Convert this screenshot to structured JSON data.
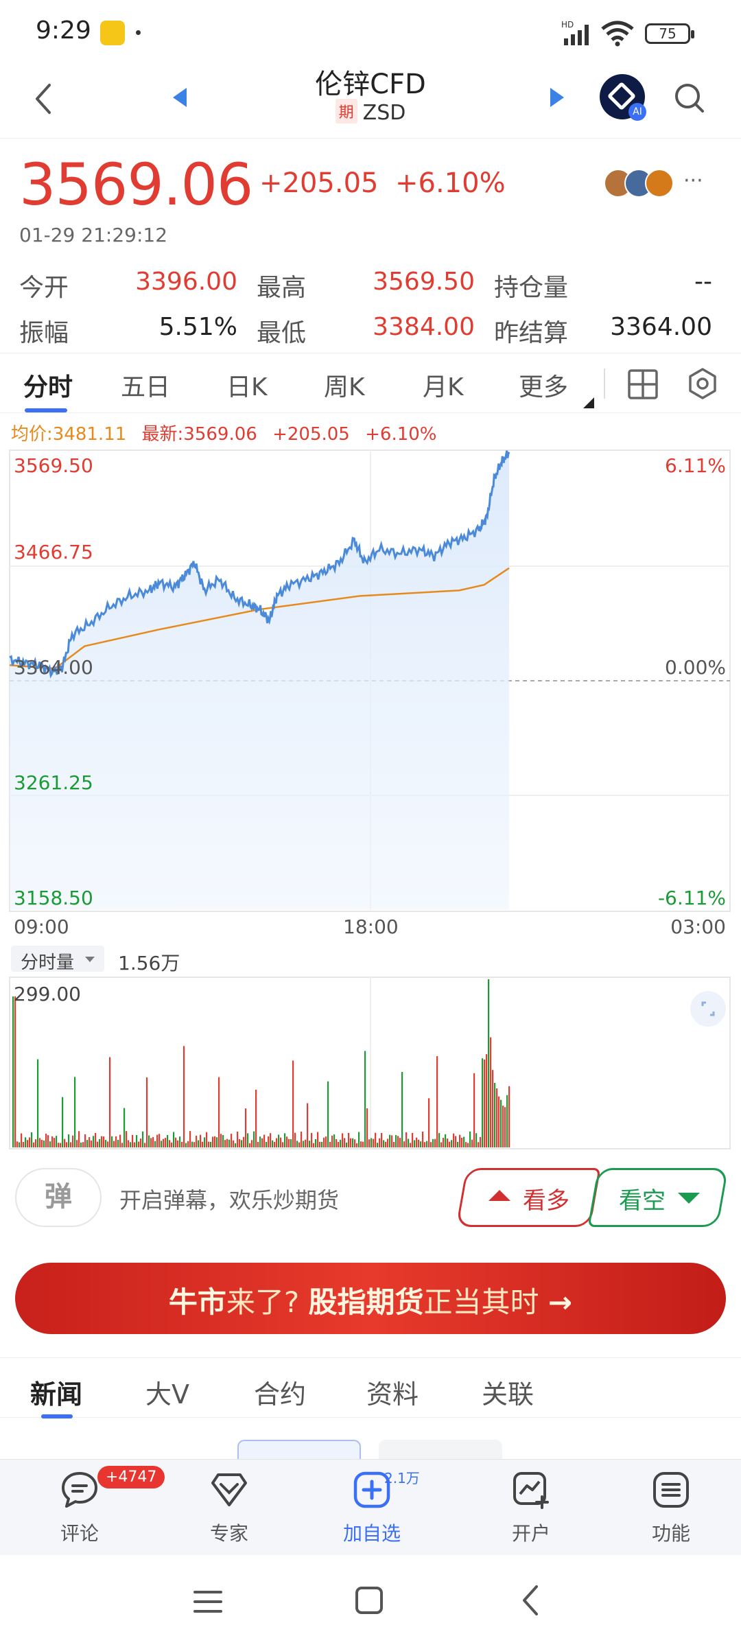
{
  "status_bar": {
    "time": "9:29",
    "battery": "75"
  },
  "header": {
    "title": "伦锌CFD",
    "tag": "期",
    "code": "ZSD",
    "ai_label": "AI"
  },
  "quote": {
    "price": "3569.06",
    "change": "+205.05",
    "change_pct": "+6.10%",
    "timestamp": "01-29 21:29:12",
    "more": "···"
  },
  "stats": [
    {
      "label": "今开",
      "value": "3396.00"
    },
    {
      "label": "最高",
      "value": "3569.50"
    },
    {
      "label": "持仓量",
      "value": "--"
    },
    {
      "label": "振幅",
      "value": "5.51%"
    },
    {
      "label": "最低",
      "value": "3384.00"
    },
    {
      "label": "昨结算",
      "value": "3364.00"
    }
  ],
  "tabs": [
    "分时",
    "五日",
    "日K",
    "周K",
    "月K",
    "更多"
  ],
  "chart_legend": {
    "avg": "均价:3481.11",
    "latest": "最新:3569.06",
    "change": "+205.05",
    "change_pct": "+6.10%"
  },
  "chart_data": {
    "type": "line",
    "y_left_labels": [
      "3569.50",
      "3466.75",
      "3364.00",
      "3261.25",
      "3158.50"
    ],
    "y_right_labels": [
      "6.11%",
      "",
      "0.00%",
      "",
      "-6.11%"
    ],
    "x_labels": [
      "09:00",
      "18:00",
      "03:00"
    ],
    "ylim": [
      3158.5,
      3569.5
    ],
    "prev_settle": 3364.0,
    "colors": {
      "price": "#4a8ad8",
      "avg": "#e68a1c",
      "up": "#e03c31",
      "down": "#1a9b35"
    }
  },
  "volume": {
    "selector": "分时量",
    "value": "1.56万",
    "max_label": "299.00"
  },
  "danmaku": {
    "icon": "弹",
    "text": "开启弹幕，欢乐炒期货"
  },
  "trade": {
    "bull": "看多",
    "bear": "看空"
  },
  "banner": {
    "part1": "牛市",
    "part2": "来了?",
    "part3": "股指期货",
    "part4": "正当其时",
    "arrow": "→"
  },
  "news_tabs": [
    "新闻",
    "大V",
    "合约",
    "资料",
    "关联"
  ],
  "bottom_nav": [
    {
      "label": "评论",
      "icon": "comment-icon"
    },
    {
      "label": "专家",
      "icon": "expert-icon"
    },
    {
      "label": "加自选",
      "icon": "add-favorite-icon"
    },
    {
      "label": "开户",
      "icon": "open-account-icon"
    },
    {
      "label": "功能",
      "icon": "menu-icon"
    }
  ],
  "badge": "+4747",
  "fav_count": "2.1万"
}
